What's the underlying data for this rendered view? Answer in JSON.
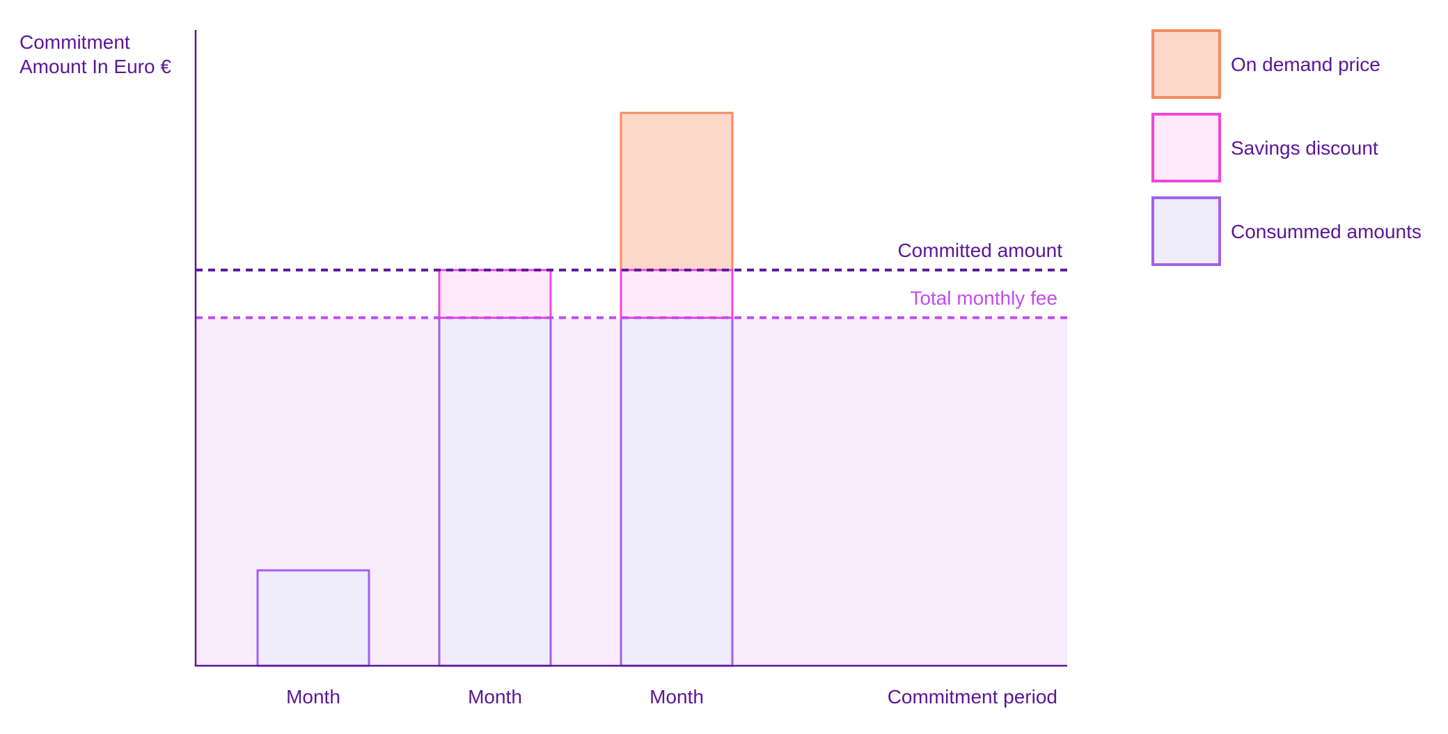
{
  "chart_data": {
    "type": "bar",
    "ylabel_lines": [
      "Commitment",
      "Amount In Euro €"
    ],
    "xlabel": "Commitment period",
    "categories": [
      "Month",
      "Month",
      "Month"
    ],
    "ylim": [
      0,
      100
    ],
    "grid": false,
    "legend_placement": "top-right",
    "series": [
      {
        "name": "Consummed amounts",
        "values": [
          17,
          62,
          62
        ]
      },
      {
        "name": "Savings discount",
        "values": [
          0,
          8.5,
          8.5
        ]
      },
      {
        "name": "On demand price",
        "values": [
          0,
          0,
          28
        ]
      }
    ],
    "reference_lines": [
      {
        "label": "Committed amount",
        "value": 70.5
      },
      {
        "label": "Total monthly fee",
        "value": 62
      }
    ],
    "shaded_region": {
      "from": 0,
      "to": 62
    }
  },
  "colors": {
    "text": "#5b1697",
    "axis": "#5b1697",
    "consumed_fill": "#efecfb",
    "consumed_stroke": "#a35fed",
    "savings_fill": "#fde9fb",
    "savings_stroke": "#f046dc",
    "ondemand_fill": "#fdd8c9",
    "ondemand_stroke": "#f28b62",
    "region_fill": "#f9edfd",
    "committed_line": "#5b1697",
    "fee_line": "#c24cef",
    "fee_text": "#c24cef"
  }
}
